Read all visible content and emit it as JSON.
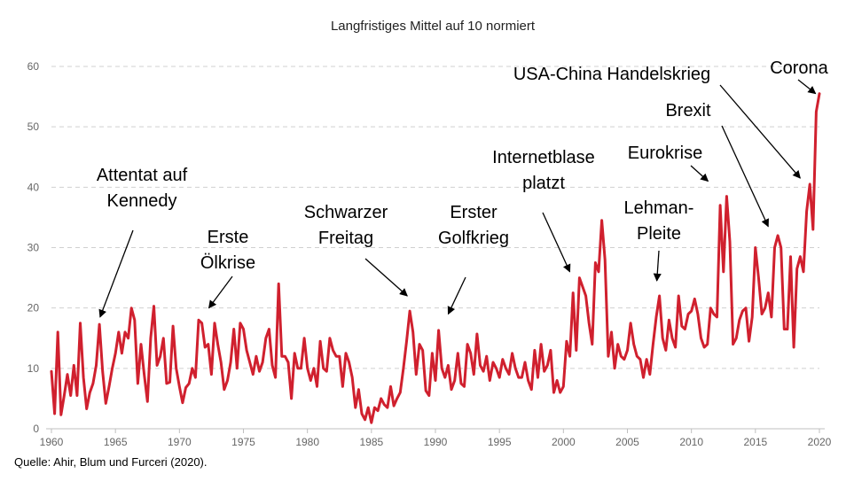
{
  "chart_data": {
    "type": "line",
    "title": "Langfristiges Mittel auf 10 normiert",
    "source": "Quelle: Ahir, Blum und Furceri (2020).",
    "xlabel": "",
    "ylabel": "",
    "xlim": [
      1960,
      2020
    ],
    "ylim": [
      0,
      60
    ],
    "x_ticks": [
      "1960",
      "1965",
      "1970",
      "1975",
      "1980",
      "1985",
      "1990",
      "1995",
      "2000",
      "2005",
      "2010",
      "2015",
      "2020"
    ],
    "y_ticks": [
      "0",
      "10",
      "20",
      "30",
      "40",
      "50",
      "60"
    ],
    "grid": true,
    "series": [
      {
        "color": "#d0202e",
        "x": [
          1960.0,
          1960.25,
          1960.5,
          1960.75,
          1961.0,
          1961.25,
          1961.5,
          1961.75,
          1962.0,
          1962.25,
          1962.5,
          1962.75,
          1963.0,
          1963.25,
          1963.5,
          1963.75,
          1964.0,
          1964.25,
          1964.5,
          1964.75,
          1965.0,
          1965.25,
          1965.5,
          1965.75,
          1966.0,
          1966.25,
          1966.5,
          1966.75,
          1967.0,
          1967.25,
          1967.5,
          1967.75,
          1968.0,
          1968.25,
          1968.5,
          1968.75,
          1969.0,
          1969.25,
          1969.5,
          1969.75,
          1970.0,
          1970.25,
          1970.5,
          1970.75,
          1971.0,
          1971.25,
          1971.5,
          1971.75,
          1972.0,
          1972.25,
          1972.5,
          1972.75,
          1973.0,
          1973.25,
          1973.5,
          1973.75,
          1974.0,
          1974.25,
          1974.5,
          1974.75,
          1975.0,
          1975.25,
          1975.5,
          1975.75,
          1976.0,
          1976.25,
          1976.5,
          1976.75,
          1977.0,
          1977.25,
          1977.5,
          1977.75,
          1978.0,
          1978.25,
          1978.5,
          1978.75,
          1979.0,
          1979.25,
          1979.5,
          1979.75,
          1980.0,
          1980.25,
          1980.5,
          1980.75,
          1981.0,
          1981.25,
          1981.5,
          1981.75,
          1982.0,
          1982.25,
          1982.5,
          1982.75,
          1983.0,
          1983.25,
          1983.5,
          1983.75,
          1984.0,
          1984.25,
          1984.5,
          1984.75,
          1985.0,
          1985.25,
          1985.5,
          1985.75,
          1986.0,
          1986.25,
          1986.5,
          1986.75,
          1987.0,
          1987.25,
          1987.5,
          1987.75,
          1988.0,
          1988.25,
          1988.5,
          1988.75,
          1989.0,
          1989.25,
          1989.5,
          1989.75,
          1990.0,
          1990.25,
          1990.5,
          1990.75,
          1991.0,
          1991.25,
          1991.5,
          1991.75,
          1992.0,
          1992.25,
          1992.5,
          1992.75,
          1993.0,
          1993.25,
          1993.5,
          1993.75,
          1994.0,
          1994.25,
          1994.5,
          1994.75,
          1995.0,
          1995.25,
          1995.5,
          1995.75,
          1996.0,
          1996.25,
          1996.5,
          1996.75,
          1997.0,
          1997.25,
          1997.5,
          1997.75,
          1998.0,
          1998.25,
          1998.5,
          1998.75,
          1999.0,
          1999.25,
          1999.5,
          1999.75,
          2000.0,
          2000.25,
          2000.5,
          2000.75,
          2001.0,
          2001.25,
          2001.5,
          2001.75,
          2002.0,
          2002.25,
          2002.5,
          2002.75,
          2003.0,
          2003.25,
          2003.5,
          2003.75,
          2004.0,
          2004.25,
          2004.5,
          2004.75,
          2005.0,
          2005.25,
          2005.5,
          2005.75,
          2006.0,
          2006.25,
          2006.5,
          2006.75,
          2007.0,
          2007.25,
          2007.5,
          2007.75,
          2008.0,
          2008.25,
          2008.5,
          2008.75,
          2009.0,
          2009.25,
          2009.5,
          2009.75,
          2010.0,
          2010.25,
          2010.5,
          2010.75,
          2011.0,
          2011.25,
          2011.5,
          2011.75,
          2012.0,
          2012.25,
          2012.5,
          2012.75,
          2013.0,
          2013.25,
          2013.5,
          2013.75,
          2014.0,
          2014.25,
          2014.5,
          2014.75,
          2015.0,
          2015.25,
          2015.5,
          2015.75,
          2016.0,
          2016.25,
          2016.5,
          2016.75,
          2017.0,
          2017.25,
          2017.5,
          2017.75,
          2018.0,
          2018.25,
          2018.5,
          2018.75,
          2019.0,
          2019.25,
          2019.5,
          2019.75,
          2020.0
        ],
        "values": [
          9.5,
          2.5,
          16,
          2.3,
          5.5,
          9,
          5.5,
          10.5,
          5.5,
          17.5,
          8.5,
          3.3,
          6,
          7.5,
          10.5,
          17.3,
          9.5,
          4.2,
          7,
          10,
          12.5,
          16,
          12.5,
          16,
          15,
          20,
          18,
          7.5,
          14,
          9,
          4.5,
          15,
          20.3,
          10.5,
          12,
          15,
          7.5,
          7.7,
          17,
          10,
          7,
          4.3,
          6.8,
          7.5,
          10,
          8.5,
          18,
          17.5,
          13.5,
          14,
          9,
          17.5,
          14,
          11,
          6.5,
          8,
          11,
          16.5,
          10,
          17.5,
          16.5,
          13,
          11,
          9,
          12,
          9.5,
          11,
          15,
          16.5,
          10.5,
          8.5,
          24,
          12,
          12,
          11,
          5,
          12.5,
          10,
          10,
          15,
          10,
          8,
          10,
          7,
          14.5,
          10,
          9.5,
          15,
          13,
          12,
          12,
          7,
          12.5,
          11,
          8.5,
          3.5,
          6.5,
          2.5,
          1.5,
          3.5,
          1,
          3.5,
          3,
          5,
          4,
          3.5,
          7,
          3.8,
          5,
          6,
          10,
          14.5,
          19.5,
          16,
          9,
          14,
          13,
          6.3,
          5.5,
          12.5,
          8,
          16.3,
          10,
          8.5,
          10.5,
          6.5,
          8,
          12.5,
          7.5,
          7,
          14,
          12.5,
          9,
          15.7,
          10.5,
          9.5,
          12,
          8,
          11,
          10,
          8.5,
          11.5,
          10,
          9,
          12.5,
          10,
          8.5,
          8.5,
          11,
          8,
          6.5,
          13,
          8.5,
          14,
          9.5,
          10.5,
          13,
          6,
          8,
          6,
          7,
          14.5,
          12,
          22.5,
          13,
          25,
          23.5,
          22,
          17.5,
          14,
          27.5,
          26,
          34.5,
          28,
          12,
          16,
          10,
          14,
          12,
          11.5,
          13,
          17.5,
          14,
          12,
          11.5,
          8.5,
          11.5,
          9,
          14,
          18.5,
          22,
          15,
          13,
          18,
          15,
          13.5,
          22,
          17,
          16.5,
          19,
          19.5,
          21.5,
          19,
          15,
          13.5,
          14,
          20,
          19,
          18.5,
          37,
          26,
          38.5,
          31,
          14,
          15,
          18,
          19.5,
          20,
          14.5,
          18.5,
          30,
          25,
          19,
          20,
          22.5,
          18.5,
          30,
          32,
          30,
          16.5,
          16.5,
          28.5,
          13.5,
          26.5,
          28.5,
          26,
          36,
          40.5,
          33,
          52.5,
          55.5
        ]
      }
    ],
    "annotations": [
      {
        "label_lines": [
          "Attentat auf",
          "Kennedy"
        ],
        "target": [
          1963.8,
          18.5
        ]
      },
      {
        "label_lines": [
          "Erste",
          "Ölkrise"
        ],
        "target": [
          1972.3,
          20
        ]
      },
      {
        "label_lines": [
          "Schwarzer",
          "Freitag"
        ],
        "target": [
          1987.8,
          22
        ]
      },
      {
        "label_lines": [
          "Erster",
          "Golfkrieg"
        ],
        "target": [
          1991.0,
          19
        ]
      },
      {
        "label_lines": [
          "Internetblase",
          "platzt"
        ],
        "target": [
          2000.5,
          26
        ]
      },
      {
        "label_lines": [
          "Lehman-",
          "Pleite"
        ],
        "target": [
          2007.3,
          24.5
        ]
      },
      {
        "label_lines": [
          "Eurokrise"
        ],
        "target": [
          2011.3,
          41
        ]
      },
      {
        "label_lines": [
          "Brexit"
        ],
        "target": [
          2016.0,
          33.5
        ]
      },
      {
        "label_lines": [
          "USA-China Handelskrieg"
        ],
        "target": [
          2018.5,
          41.5
        ]
      },
      {
        "label_lines": [
          "Corona"
        ],
        "target": [
          2019.7,
          55.5
        ]
      }
    ]
  }
}
